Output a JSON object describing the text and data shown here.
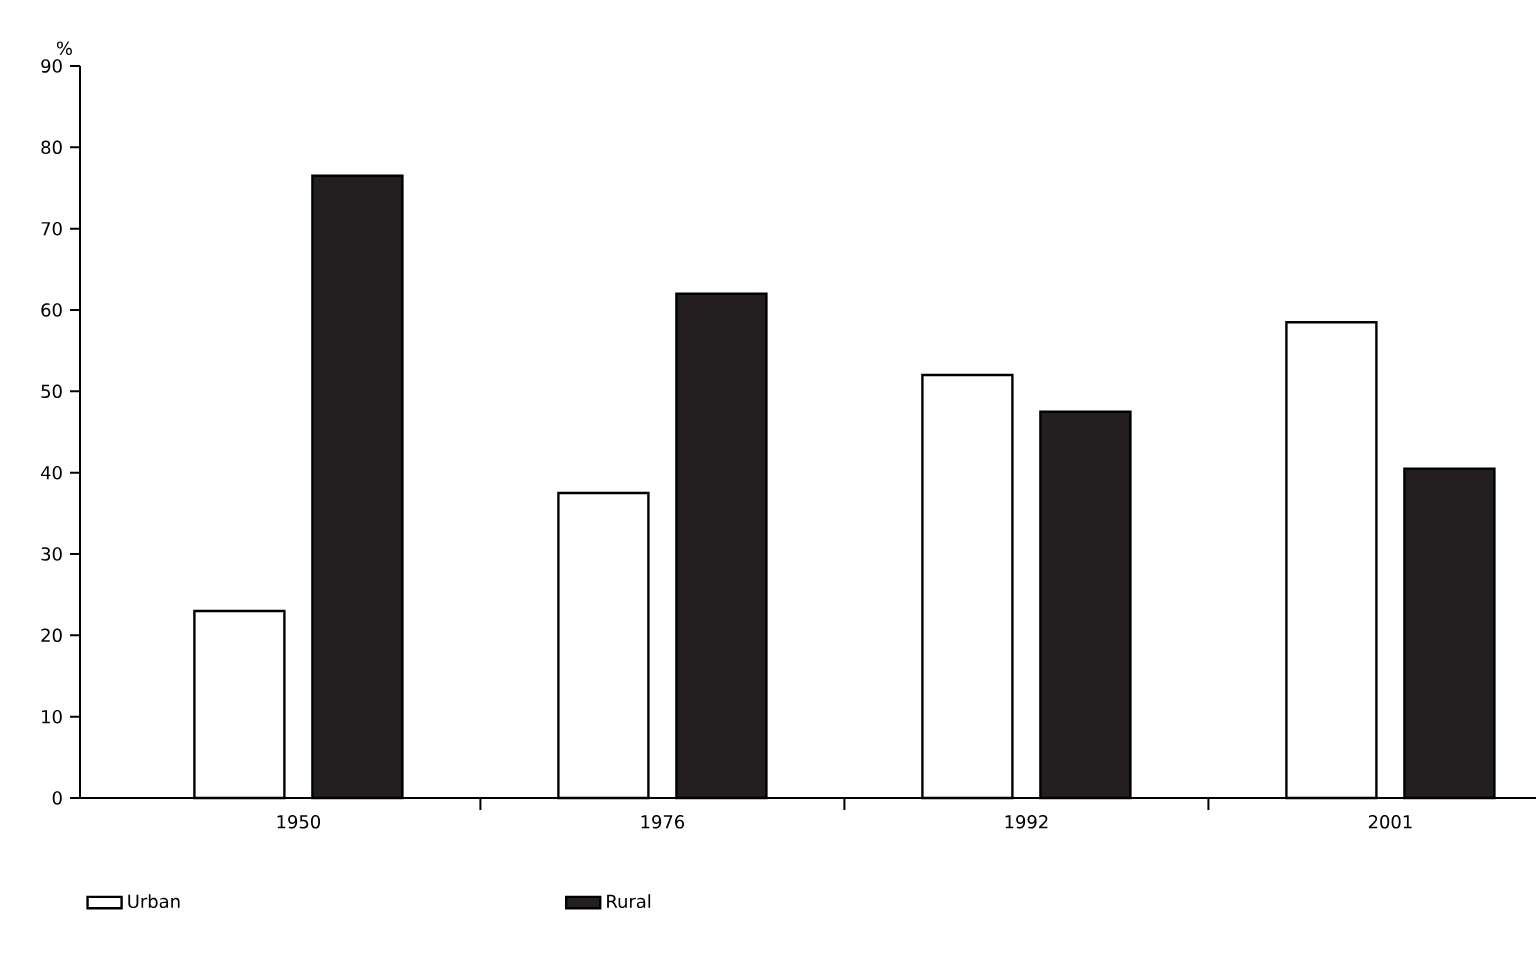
{
  "chart_data": {
    "type": "bar",
    "ylabel": "%",
    "categories": [
      "1950",
      "1976",
      "1992",
      "2001"
    ],
    "series": [
      {
        "name": "Urban",
        "color": "#ffffff",
        "values": [
          23,
          37.5,
          52,
          58.5
        ]
      },
      {
        "name": "Rural",
        "color": "#231f20",
        "values": [
          76.5,
          62,
          47.5,
          40.5
        ]
      }
    ],
    "ylim": [
      0,
      90
    ],
    "yticks": [
      0,
      10,
      20,
      30,
      40,
      50,
      60,
      70,
      80,
      90
    ],
    "legend": "bottom",
    "grid": false
  }
}
